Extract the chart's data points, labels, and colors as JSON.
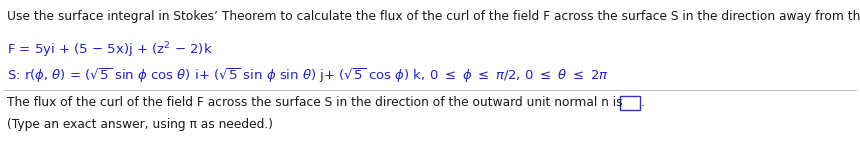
{
  "bg_color": "#ffffff",
  "text_color": "#1a1a1a",
  "blue_color": "#2222cc",
  "line1": "Use the surface integral in Stokes’ Theorem to calculate the flux of the curl of the field F across the surface S in the direction away from the origin.",
  "line_bottom1": "The flux of the curl of the field F across the surface S in the direction of the outward unit normal n is",
  "line_bottom2": "(Type an exact answer, using π as needed.)",
  "fig_width": 8.6,
  "fig_height": 1.48,
  "dpi": 100
}
